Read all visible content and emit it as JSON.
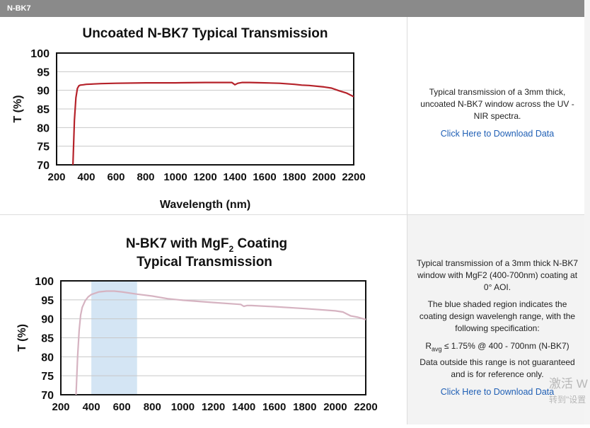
{
  "header": {
    "title": "N-BK7"
  },
  "section1": {
    "info_text": "Typical transmission of a 3mm thick, uncoated N-BK7 window across the UV - NIR spectra.",
    "download_link": "Click Here to Download Data"
  },
  "section2": {
    "info_text": "Typical transmission of a 3mm thick N-BK7 window with MgF2 (400-700nm) coating at 0° AOI.",
    "info_text2": "The blue shaded region indicates the coating design wavelengh range, with the following specification:",
    "spec_r": "R",
    "spec_sub": "avg",
    "spec_rest": " ≤ 1.75% @ 400 - 700nm (N-BK7)",
    "info_text3": "Data outside this range is not guaranteed and is for reference only.",
    "download_link": "Click Here to Download Data"
  },
  "watermark": {
    "line1": "激活 W",
    "line2": "转到\"设置"
  },
  "chart_data": [
    {
      "type": "line",
      "title": "Uncoated N-BK7 Typical Transmission",
      "xlabel": "Wavelength (nm)",
      "ylabel": "T (%)",
      "xlim": [
        200,
        2200
      ],
      "ylim": [
        70,
        100
      ],
      "xticks": [
        200,
        400,
        600,
        800,
        1000,
        1200,
        1400,
        1600,
        1800,
        2000,
        2200
      ],
      "yticks": [
        70,
        75,
        80,
        85,
        90,
        95,
        100
      ],
      "grid": true,
      "color": "#b5222a",
      "series": [
        {
          "x": [
            310,
            320,
            330,
            340,
            350,
            360,
            380,
            400,
            450,
            500,
            600,
            800,
            1000,
            1200,
            1380,
            1400,
            1420,
            1450,
            1500,
            1600,
            1700,
            1800,
            1850,
            1900,
            2000,
            2050,
            2100,
            2150,
            2200
          ],
          "y": [
            70,
            82,
            88,
            90.5,
            91.2,
            91.4,
            91.5,
            91.6,
            91.7,
            91.8,
            91.9,
            92.0,
            92.0,
            92.1,
            92.1,
            91.5,
            91.9,
            92.1,
            92.1,
            92.0,
            91.9,
            91.6,
            91.4,
            91.3,
            90.9,
            90.6,
            89.9,
            89.3,
            88.3
          ]
        }
      ]
    },
    {
      "type": "line",
      "title": "N-BK7 with MgF2 Coating Typical Transmission",
      "title_line1": "N-BK7 with MgF",
      "title_sub": "2",
      "title_line1_end": " Coating",
      "title_line2": "Typical Transmission",
      "ylabel": "T (%)",
      "xlim": [
        200,
        2200
      ],
      "ylim": [
        70,
        100
      ],
      "xticks": [
        200,
        400,
        600,
        800,
        1000,
        1200,
        1400,
        1600,
        1800,
        2000,
        2200
      ],
      "yticks": [
        70,
        75,
        80,
        85,
        90,
        95,
        100
      ],
      "grid": true,
      "color": "#d6b3c1",
      "shade_range": [
        400,
        700
      ],
      "shade_color": "#d4e5f4",
      "series": [
        {
          "x": [
            300,
            310,
            320,
            330,
            340,
            360,
            380,
            400,
            450,
            500,
            550,
            600,
            700,
            800,
            900,
            1000,
            1200,
            1380,
            1400,
            1420,
            1450,
            1600,
            1800,
            2000,
            2050,
            2100,
            2150,
            2200
          ],
          "y": [
            70,
            80,
            87,
            91,
            93,
            94.8,
            95.8,
            96.4,
            97.1,
            97.3,
            97.3,
            97.1,
            96.5,
            96,
            95.3,
            94.9,
            94.3,
            93.8,
            93.3,
            93.5,
            93.5,
            93.2,
            92.7,
            92.1,
            91.8,
            90.8,
            90.4,
            89.8
          ]
        }
      ]
    }
  ]
}
